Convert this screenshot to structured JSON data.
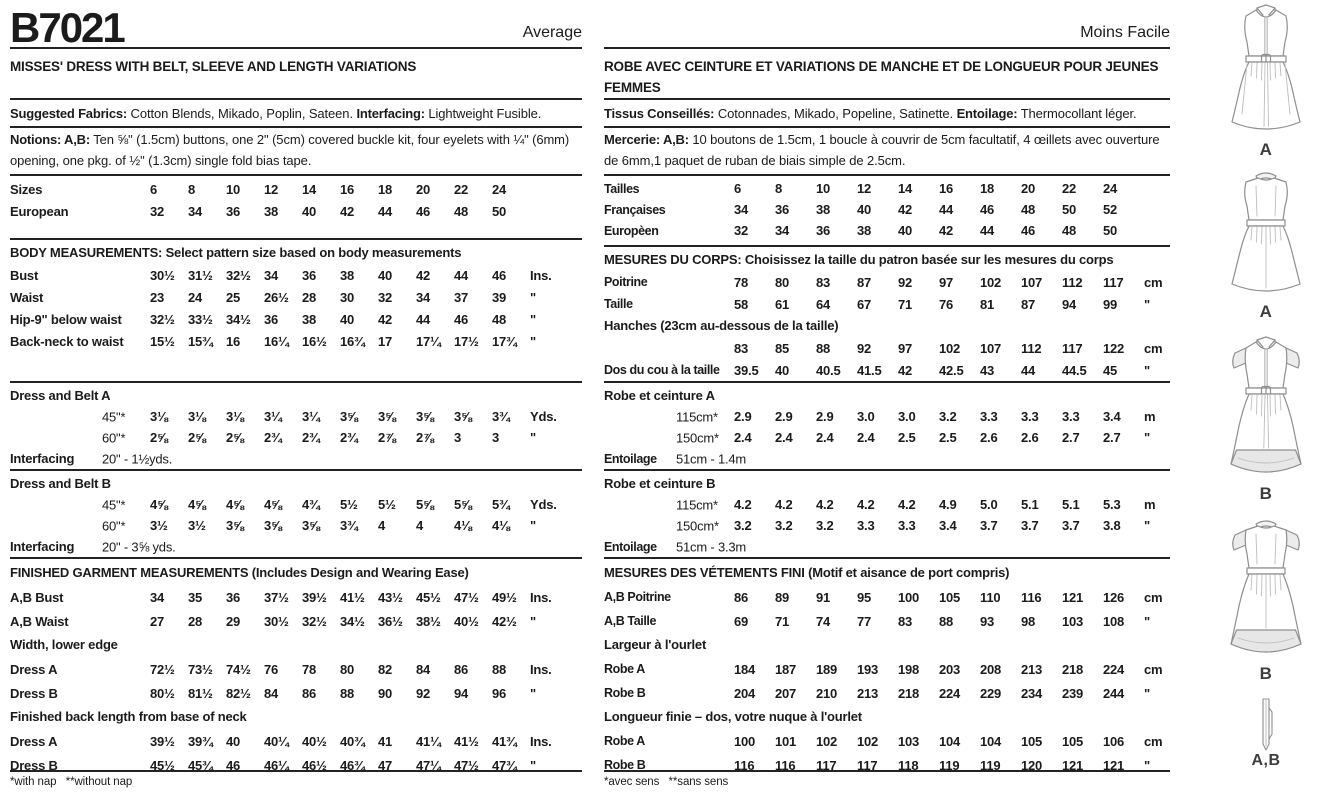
{
  "left": {
    "code": "B7021",
    "difficulty": "Average",
    "title": "MISSES' DRESS WITH BELT, SLEEVE AND LENGTH VARIATIONS",
    "fabrics_label": "Suggested Fabrics:",
    "fabrics_text": " Cotton Blends, Mikado, Poplin, Sateen. ",
    "interfacing_label": "Interfacing:",
    "interfacing_text": " Lightweight Fusible.",
    "notions_label": "Notions: A,B:",
    "notions_text": " Ten ⅝\" (1.5cm) buttons, one 2\" (5cm) covered buckle kit, four eyelets with ¼\" (6mm) opening, one pkg. of ½\" (1.3cm) single fold bias tape.",
    "sizes_table": [
      {
        "label": "Sizes",
        "values": [
          "6",
          "8",
          "10",
          "12",
          "14",
          "16",
          "18",
          "20",
          "22",
          "24"
        ],
        "unit": ""
      },
      {
        "label": "European",
        "values": [
          "32",
          "34",
          "36",
          "38",
          "40",
          "42",
          "44",
          "46",
          "48",
          "50"
        ],
        "unit": ""
      }
    ],
    "body_table": [
      {
        "t": "h",
        "text": "BODY MEASUREMENTS: Select pattern size based on body measurements"
      },
      {
        "label": "Bust",
        "values": [
          "30½",
          "31½",
          "32½",
          "34",
          "36",
          "38",
          "40",
          "42",
          "44",
          "46"
        ],
        "unit": "Ins."
      },
      {
        "label": "Waist",
        "values": [
          "23",
          "24",
          "25",
          "26½",
          "28",
          "30",
          "32",
          "34",
          "37",
          "39"
        ],
        "unit": "\""
      },
      {
        "label": "Hip-9\" below waist",
        "values": [
          "32½",
          "33½",
          "34½",
          "36",
          "38",
          "40",
          "42",
          "44",
          "46",
          "48"
        ],
        "unit": "\""
      },
      {
        "label": "Back-neck to waist",
        "values": [
          "15½",
          "15¾",
          "16",
          "16¼",
          "16½",
          "16¾",
          "17",
          "17¼",
          "17½",
          "17¾"
        ],
        "unit": "\""
      }
    ],
    "dressA_table": [
      {
        "t": "h",
        "text": "Dress and Belt A"
      },
      {
        "label": "",
        "sub": "45\"*",
        "values": [
          "3⅛",
          "3⅛",
          "3⅛",
          "3¼",
          "3¼",
          "3⅝",
          "3⅝",
          "3⅝",
          "3⅝",
          "3¾"
        ],
        "unit": "Yds."
      },
      {
        "label": "",
        "sub": "60\"*",
        "values": [
          "2⅝",
          "2⅝",
          "2⅝",
          "2¾",
          "2¾",
          "2¾",
          "2⅞",
          "2⅞",
          "3",
          "3"
        ],
        "unit": "\""
      },
      {
        "label": "Interfacing",
        "sub": "20\" - 1½yds.",
        "values": [],
        "unit": ""
      }
    ],
    "dressB_table": [
      {
        "t": "h",
        "text": "Dress and Belt B"
      },
      {
        "label": "",
        "sub": "45\"*",
        "values": [
          "4⅝",
          "4⅝",
          "4⅝",
          "4⅝",
          "4¾",
          "5½",
          "5½",
          "5⅝",
          "5⅝",
          "5¾"
        ],
        "unit": "Yds."
      },
      {
        "label": "",
        "sub": "60\"*",
        "values": [
          "3½",
          "3½",
          "3⅝",
          "3⅝",
          "3⅝",
          "3¾",
          "4",
          "4",
          "4⅛",
          "4⅛"
        ],
        "unit": "\""
      },
      {
        "label": "Interfacing",
        "sub": "20\" - 3⅝ yds.",
        "values": [],
        "unit": ""
      }
    ],
    "finished_table": [
      {
        "t": "h",
        "text": "FINISHED GARMENT MEASUREMENTS (Includes Design and Wearing Ease)"
      },
      {
        "label": "A,B Bust",
        "values": [
          "34",
          "35",
          "36",
          "37½",
          "39½",
          "41½",
          "43½",
          "45½",
          "47½",
          "49½"
        ],
        "unit": "Ins."
      },
      {
        "label": "A,B Waist",
        "values": [
          "27",
          "28",
          "29",
          "30½",
          "32½",
          "34½",
          "36½",
          "38½",
          "40½",
          "42½"
        ],
        "unit": "\""
      },
      {
        "t": "h",
        "text": "Width, lower edge"
      },
      {
        "label": "Dress A",
        "values": [
          "72½",
          "73½",
          "74½",
          "76",
          "78",
          "80",
          "82",
          "84",
          "86",
          "88"
        ],
        "unit": "Ins."
      },
      {
        "label": "Dress B",
        "values": [
          "80½",
          "81½",
          "82½",
          "84",
          "86",
          "88",
          "90",
          "92",
          "94",
          "96"
        ],
        "unit": "\""
      },
      {
        "t": "h",
        "text": "Finished back length from base of neck"
      },
      {
        "label": "Dress A",
        "values": [
          "39½",
          "39¾",
          "40",
          "40¼",
          "40½",
          "40¾",
          "41",
          "41¼",
          "41½",
          "41¾"
        ],
        "unit": "Ins."
      },
      {
        "label": "Dress B",
        "values": [
          "45½",
          "45¾",
          "46",
          "46¼",
          "46½",
          "46¾",
          "47",
          "47¼",
          "47½",
          "47¾"
        ],
        "unit": "\""
      }
    ],
    "footnote": "*with nap   **without nap"
  },
  "right": {
    "difficulty": "Moins Facile",
    "title": "ROBE AVEC CEINTURE ET VARIATIONS DE MANCHE ET DE LONGUEUR POUR JEUNES FEMMES",
    "fabrics_label": "Tissus Conseillés:",
    "fabrics_text": " Cotonnades, Mikado, Popeline, Satinette. ",
    "interfacing_label": "Entoilage:",
    "interfacing_text": " Thermocollant léger.",
    "notions_label": "Mercerie: A,B:",
    "notions_text": " 10 boutons de 1.5cm, 1 boucle à couvrir de 5cm facultatif, 4 œillets avec ouverture de 6mm,1 paquet de ruban de biais simple de 2.5cm.",
    "sizes_table": [
      {
        "label": "Tailles",
        "values": [
          "6",
          "8",
          "10",
          "12",
          "14",
          "16",
          "18",
          "20",
          "22",
          "24"
        ],
        "unit": ""
      },
      {
        "label": "Françaises",
        "values": [
          "34",
          "36",
          "38",
          "40",
          "42",
          "44",
          "46",
          "48",
          "50",
          "52"
        ],
        "unit": ""
      },
      {
        "label": "Europèen",
        "values": [
          "32",
          "34",
          "36",
          "38",
          "40",
          "42",
          "44",
          "46",
          "48",
          "50"
        ],
        "unit": ""
      }
    ],
    "mesures_table": [
      {
        "t": "h",
        "text": "MESURES DU CORPS: Choisissez la taille du patron basée sur les mesures du corps"
      },
      {
        "label": "Poitrine",
        "values": [
          "78",
          "80",
          "83",
          "87",
          "92",
          "97",
          "102",
          "107",
          "112",
          "117"
        ],
        "unit": "cm"
      },
      {
        "label": "Taille",
        "values": [
          "58",
          "61",
          "64",
          "67",
          "71",
          "76",
          "81",
          "87",
          "94",
          "99"
        ],
        "unit": "\""
      },
      {
        "t": "h",
        "text": "Hanches (23cm au-dessous de la taille)"
      },
      {
        "label": "",
        "values": [
          "83",
          "85",
          "88",
          "92",
          "97",
          "102",
          "107",
          "112",
          "117",
          "122"
        ],
        "unit": "cm"
      },
      {
        "label": "Dos du cou à la taille",
        "values": [
          "39.5",
          "40",
          "40.5",
          "41.5",
          "42",
          "42.5",
          "43",
          "44",
          "44.5",
          "45"
        ],
        "unit": "\""
      }
    ],
    "robeA_table": [
      {
        "t": "h",
        "text": "Robe et ceinture A"
      },
      {
        "label": "",
        "sub": "115cm*",
        "values": [
          "2.9",
          "2.9",
          "2.9",
          "3.0",
          "3.0",
          "3.2",
          "3.3",
          "3.3",
          "3.3",
          "3.4"
        ],
        "unit": "m"
      },
      {
        "label": "",
        "sub": "150cm*",
        "values": [
          "2.4",
          "2.4",
          "2.4",
          "2.4",
          "2.5",
          "2.5",
          "2.6",
          "2.6",
          "2.7",
          "2.7"
        ],
        "unit": "\""
      },
      {
        "label": "Entoilage",
        "sub": "51cm - 1.4m",
        "values": [],
        "unit": ""
      }
    ],
    "robeB_table": [
      {
        "t": "h",
        "text": "Robe et ceinture B"
      },
      {
        "label": "",
        "sub": "115cm*",
        "values": [
          "4.2",
          "4.2",
          "4.2",
          "4.2",
          "4.2",
          "4.9",
          "5.0",
          "5.1",
          "5.1",
          "5.3"
        ],
        "unit": "m"
      },
      {
        "label": "",
        "sub": "150cm*",
        "values": [
          "3.2",
          "3.2",
          "3.2",
          "3.3",
          "3.3",
          "3.4",
          "3.7",
          "3.7",
          "3.7",
          "3.8"
        ],
        "unit": "\""
      },
      {
        "label": "Entoilage",
        "sub": "51cm - 3.3m",
        "values": [],
        "unit": ""
      }
    ],
    "fini_table": [
      {
        "t": "h",
        "text": "MESURES DES VÉTEMENTS FINI (Motif et aisance de port compris)"
      },
      {
        "label": "A,B Poitrine",
        "values": [
          "86",
          "89",
          "91",
          "95",
          "100",
          "105",
          "110",
          "116",
          "121",
          "126"
        ],
        "unit": "cm"
      },
      {
        "label": "A,B Taille",
        "values": [
          "69",
          "71",
          "74",
          "77",
          "83",
          "88",
          "93",
          "98",
          "103",
          "108"
        ],
        "unit": "\""
      },
      {
        "t": "h",
        "text": "Largeur à l'ourlet"
      },
      {
        "label": "Robe A",
        "values": [
          "184",
          "187",
          "189",
          "193",
          "198",
          "203",
          "208",
          "213",
          "218",
          "224"
        ],
        "unit": "cm"
      },
      {
        "label": "Robe B",
        "values": [
          "204",
          "207",
          "210",
          "213",
          "218",
          "224",
          "229",
          "234",
          "239",
          "244"
        ],
        "unit": "\""
      },
      {
        "t": "h",
        "text": "Longueur finie – dos, votre nuque à l'ourlet"
      },
      {
        "label": "Robe A",
        "values": [
          "100",
          "101",
          "102",
          "102",
          "103",
          "104",
          "104",
          "105",
          "105",
          "106"
        ],
        "unit": "cm"
      },
      {
        "label": "Robe B",
        "values": [
          "116",
          "116",
          "117",
          "117",
          "118",
          "119",
          "119",
          "120",
          "121",
          "121"
        ],
        "unit": "\""
      }
    ],
    "footnote": "*avec sens   **sans sens"
  },
  "figures": {
    "labels": [
      "A",
      "A",
      "B",
      "B",
      "A,B"
    ]
  }
}
